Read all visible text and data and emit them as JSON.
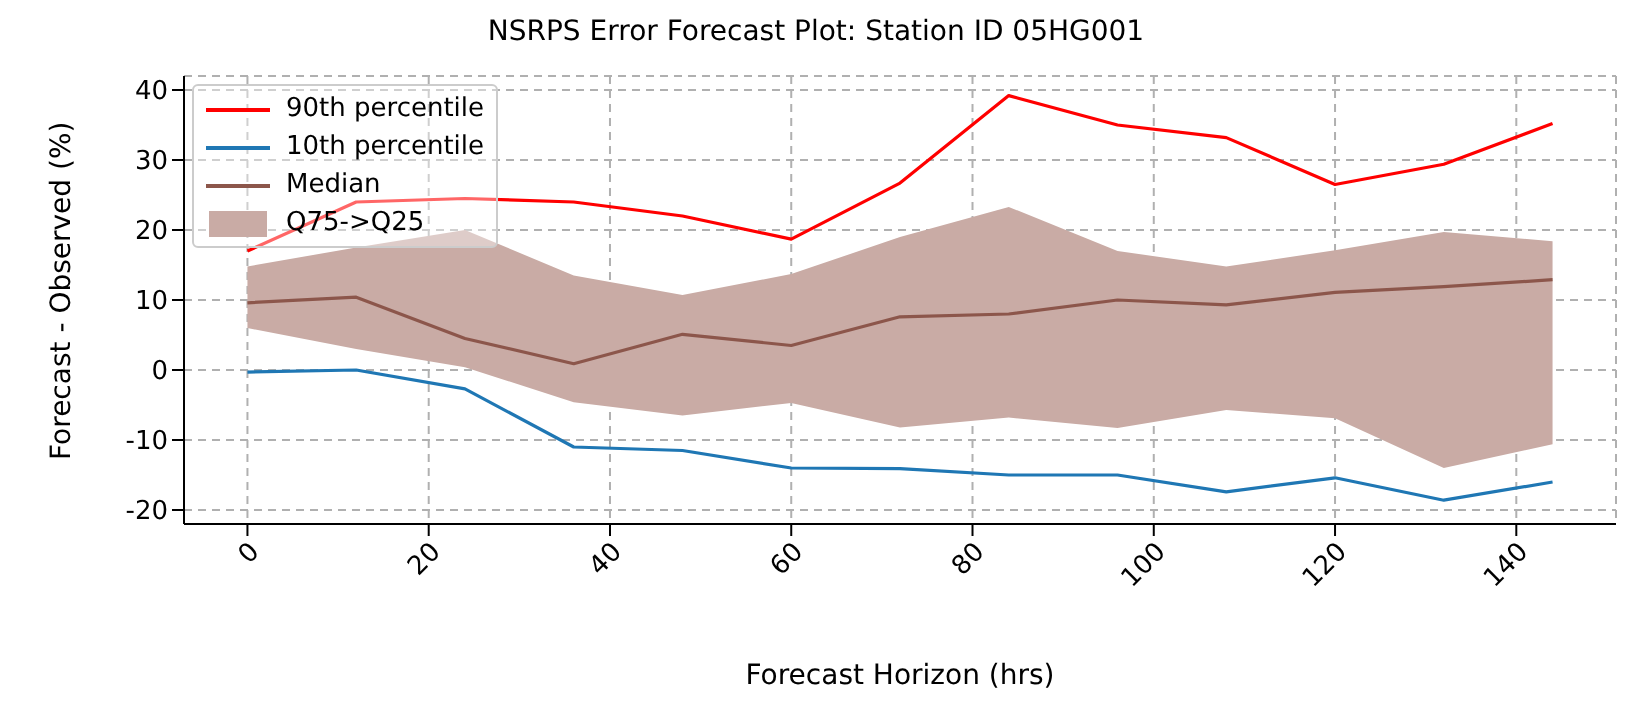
{
  "chart_data": {
    "type": "line",
    "title": "NSRPS Error Forecast Plot: Station ID 05HG001",
    "xlabel": "Forecast Horizon (hrs)",
    "ylabel": "Forecast - Observed (%)",
    "x": [
      0,
      12,
      24,
      36,
      48,
      60,
      72,
      84,
      96,
      108,
      120,
      132,
      144
    ],
    "series": [
      {
        "name": "90th percentile",
        "color": "#ff0000",
        "values": [
          17,
          24,
          24.5,
          24,
          22,
          18.7,
          26.7,
          39.2,
          35,
          33.2,
          26.5,
          29.4,
          35.2
        ]
      },
      {
        "name": "10th percentile",
        "color": "#1f77b4",
        "values": [
          -0.3,
          0,
          -2.7,
          -11,
          -11.5,
          -14,
          -14.1,
          -15,
          -15,
          -17.4,
          -15.4,
          -18.6,
          -16
        ]
      },
      {
        "name": "Median",
        "color": "#8c564b",
        "values": [
          9.6,
          10.4,
          4.5,
          0.9,
          5.1,
          3.5,
          7.6,
          8,
          10,
          9.3,
          11.1,
          11.9,
          12.9
        ]
      },
      {
        "name": "Q75->Q25",
        "type": "area",
        "color": "#c9aba5",
        "values": [
          null,
          null,
          null,
          null,
          null,
          null,
          null,
          null,
          null,
          null,
          null,
          null,
          null
        ],
        "lower": [
          6,
          3,
          0.4,
          -4.6,
          -6.5,
          -4.7,
          -8.2,
          -6.8,
          -8.3,
          -5.7,
          -6.9,
          -14,
          -10.6
        ],
        "upper": [
          14.8,
          17.5,
          20,
          13.5,
          10.7,
          13.7,
          19,
          23.3,
          17,
          14.8,
          17.1,
          19.7,
          18.4
        ]
      }
    ],
    "xlim": [
      -7,
      151
    ],
    "xticks": [
      0,
      20,
      40,
      60,
      80,
      100,
      120,
      140
    ],
    "ylim": [
      -22,
      42
    ],
    "yticks": [
      -20,
      -10,
      0,
      10,
      20,
      30,
      40
    ],
    "grid": true,
    "legend": "top left",
    "line_style": "solid",
    "marker": "none"
  }
}
